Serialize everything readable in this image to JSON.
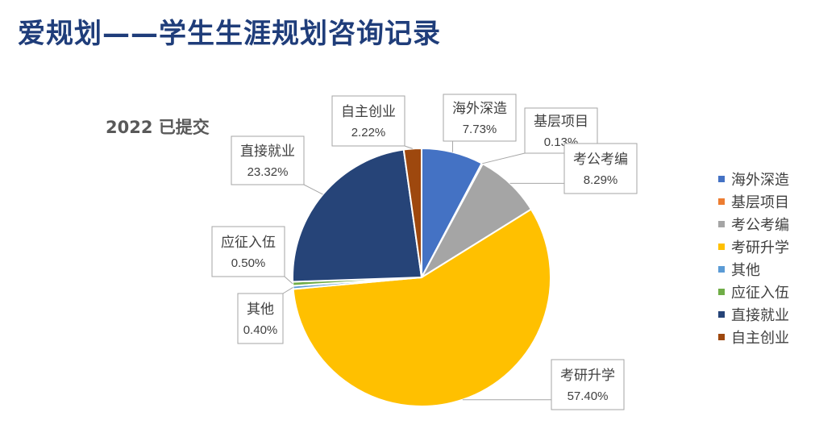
{
  "page": {
    "title": "爱规划——学生生涯规划咨询记录"
  },
  "chart_data": {
    "type": "pie",
    "title": "2022 已提交",
    "categories": [
      "海外深造",
      "基层项目",
      "考公考编",
      "考研升学",
      "其他",
      "应征入伍",
      "直接就业",
      "自主创业"
    ],
    "values": [
      7.73,
      0.13,
      8.29,
      57.4,
      0.4,
      0.5,
      23.32,
      2.22
    ],
    "labels": [
      "7.73%",
      "0.13%",
      "8.29%",
      "57.40%",
      "0.40%",
      "0.50%",
      "23.32%",
      "2.22%"
    ],
    "colors": [
      "#4472C4",
      "#ED7D31",
      "#A5A5A5",
      "#FFC000",
      "#5B9BD5",
      "#70AD47",
      "#264478",
      "#9E480E"
    ],
    "start_angle": "12 o'clock",
    "direction": "clockwise",
    "legend_position": "right"
  }
}
